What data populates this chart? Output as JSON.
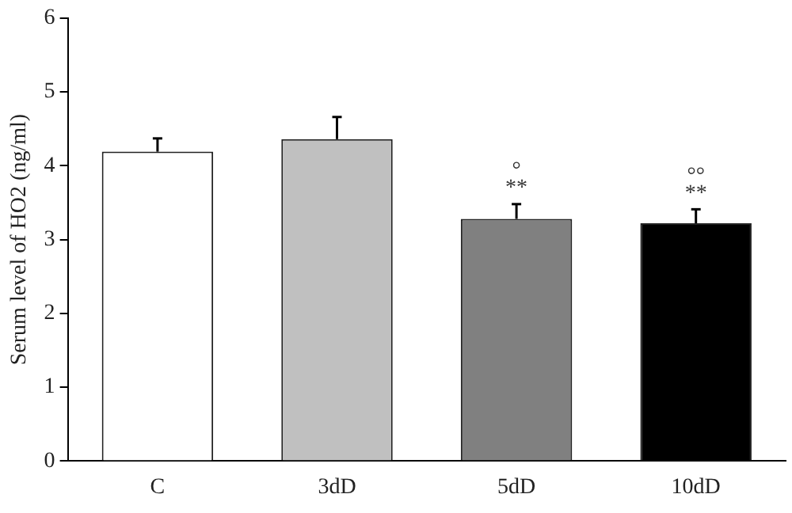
{
  "chart_data": {
    "type": "bar",
    "ylabel": "Serum level of HO2 (ng/ml)",
    "categories": [
      "C",
      "3dD",
      "5dD",
      "10dD"
    ],
    "values": [
      4.19,
      4.36,
      3.28,
      3.22
    ],
    "colors": [
      "#ffffff",
      "#c0c0c0",
      "#808080",
      "#000000"
    ],
    "errors": [
      [
        4.19,
        4.37
      ],
      [
        4.36,
        4.66
      ],
      [
        3.28,
        3.48
      ],
      [
        3.22,
        3.41
      ]
    ],
    "ylim": [
      0,
      6
    ],
    "yticks": [
      0,
      1,
      2,
      3,
      4,
      5,
      6
    ],
    "grid": false,
    "legend": false,
    "annotations": [
      {
        "text": "**",
        "x": "5dD",
        "y": 3.48
      },
      {
        "text": "°",
        "x": "5dD",
        "y": 3.48
      },
      {
        "text": "**",
        "x": "10dD",
        "y": 3.41
      },
      {
        "text": "°°",
        "x": "10dD",
        "y": 3.41
      }
    ]
  }
}
